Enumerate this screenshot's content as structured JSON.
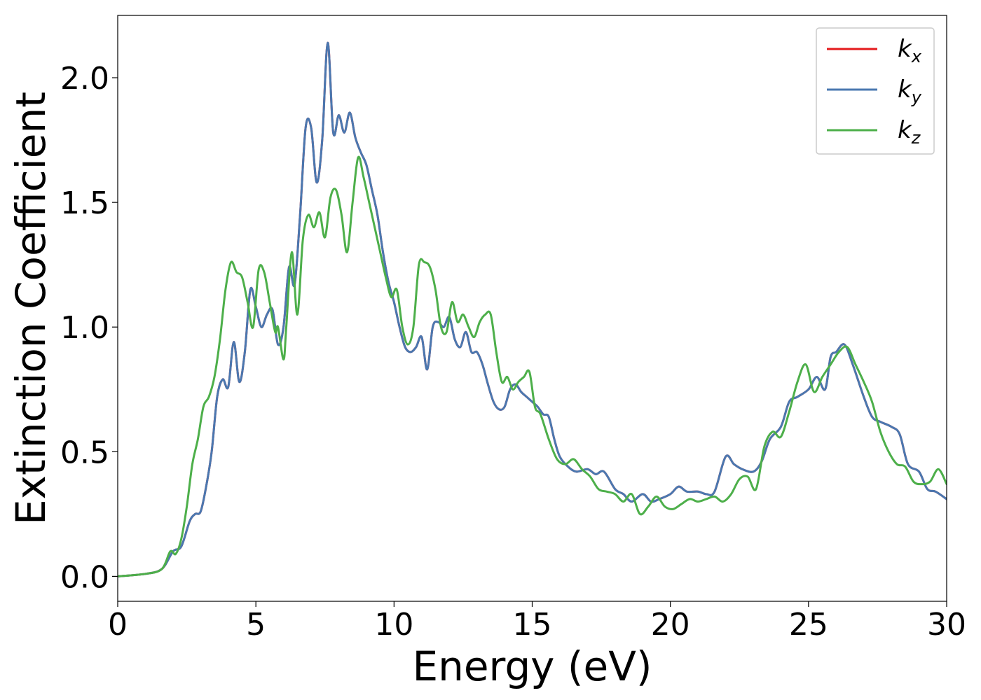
{
  "chart_data": {
    "type": "line",
    "title": "",
    "xlabel": "Energy (eV)",
    "ylabel": "Extinction Coefficient",
    "xlim": [
      0,
      30
    ],
    "ylim": [
      -0.1,
      2.25
    ],
    "xticks": [
      0,
      5,
      10,
      15,
      20,
      25,
      30
    ],
    "xtick_labels": [
      "0",
      "5",
      "10",
      "15",
      "20",
      "25",
      "30"
    ],
    "yticks": [
      0,
      0.5,
      1,
      1.5,
      2
    ],
    "ytick_labels": [
      "0.0",
      "0.5",
      "1.0",
      "1.5",
      "2.0"
    ],
    "grid": false,
    "legend_position": "top-right",
    "series": [
      {
        "name": "k",
        "subscript": "x",
        "color": "#e41a1c",
        "x": [
          0,
          1,
          1.6,
          2.0,
          2.3,
          2.6,
          2.8,
          3.0,
          3.2,
          3.4,
          3.6,
          3.8,
          4.0,
          4.2,
          4.4,
          4.6,
          4.8,
          5.0,
          5.2,
          5.4,
          5.6,
          5.8,
          6.0,
          6.2,
          6.4,
          6.6,
          6.8,
          7.0,
          7.2,
          7.4,
          7.6,
          7.8,
          8.0,
          8.2,
          8.4,
          8.6,
          8.8,
          9.0,
          9.2,
          9.4,
          9.6,
          9.8,
          10.0,
          10.2,
          10.4,
          10.6,
          10.8,
          11.0,
          11.2,
          11.4,
          11.6,
          11.8,
          12.0,
          12.2,
          12.4,
          12.6,
          12.8,
          13.0,
          13.2,
          13.4,
          13.6,
          13.8,
          14.0,
          14.2,
          14.4,
          14.6,
          14.8,
          15.0,
          15.2,
          15.4,
          15.6,
          15.8,
          16.0,
          16.3,
          16.6,
          17.0,
          17.3,
          17.6,
          18.0,
          18.3,
          18.6,
          19.0,
          19.3,
          19.6,
          20.0,
          20.3,
          20.6,
          21.0,
          21.3,
          21.6,
          22.0,
          22.3,
          22.6,
          23.0,
          23.3,
          23.6,
          24.0,
          24.3,
          24.6,
          25.0,
          25.3,
          25.6,
          25.8,
          26.0,
          26.3,
          26.6,
          27.0,
          27.3,
          27.6,
          28.0,
          28.3,
          28.6,
          29.0,
          29.3,
          29.6,
          30.0
        ],
        "values": [
          0.0,
          0.01,
          0.03,
          0.1,
          0.12,
          0.22,
          0.25,
          0.26,
          0.36,
          0.5,
          0.72,
          0.79,
          0.76,
          0.94,
          0.78,
          0.9,
          1.15,
          1.08,
          1.0,
          1.05,
          1.07,
          0.93,
          1.0,
          1.24,
          1.17,
          1.45,
          1.8,
          1.8,
          1.58,
          1.75,
          2.14,
          1.78,
          1.85,
          1.78,
          1.86,
          1.76,
          1.7,
          1.65,
          1.55,
          1.45,
          1.3,
          1.18,
          1.1,
          1.0,
          0.92,
          0.9,
          0.92,
          0.96,
          0.83,
          1.0,
          1.02,
          1.0,
          1.04,
          0.95,
          0.92,
          0.98,
          0.9,
          0.9,
          0.85,
          0.77,
          0.7,
          0.67,
          0.68,
          0.75,
          0.77,
          0.74,
          0.72,
          0.7,
          0.68,
          0.65,
          0.64,
          0.55,
          0.48,
          0.44,
          0.42,
          0.43,
          0.41,
          0.42,
          0.35,
          0.33,
          0.3,
          0.33,
          0.3,
          0.31,
          0.33,
          0.36,
          0.34,
          0.34,
          0.33,
          0.34,
          0.48,
          0.45,
          0.43,
          0.42,
          0.46,
          0.55,
          0.6,
          0.7,
          0.72,
          0.75,
          0.8,
          0.75,
          0.88,
          0.9,
          0.93,
          0.85,
          0.72,
          0.64,
          0.62,
          0.6,
          0.57,
          0.45,
          0.42,
          0.35,
          0.34,
          0.31
        ],
        "hidden_by_overlap": true
      },
      {
        "name": "k",
        "subscript": "y",
        "color": "#4a78b0",
        "x": [
          0,
          1,
          1.6,
          2.0,
          2.3,
          2.6,
          2.8,
          3.0,
          3.2,
          3.4,
          3.6,
          3.8,
          4.0,
          4.2,
          4.4,
          4.6,
          4.8,
          5.0,
          5.2,
          5.4,
          5.6,
          5.8,
          6.0,
          6.2,
          6.4,
          6.6,
          6.8,
          7.0,
          7.2,
          7.4,
          7.6,
          7.8,
          8.0,
          8.2,
          8.4,
          8.6,
          8.8,
          9.0,
          9.2,
          9.4,
          9.6,
          9.8,
          10.0,
          10.2,
          10.4,
          10.6,
          10.8,
          11.0,
          11.2,
          11.4,
          11.6,
          11.8,
          12.0,
          12.2,
          12.4,
          12.6,
          12.8,
          13.0,
          13.2,
          13.4,
          13.6,
          13.8,
          14.0,
          14.2,
          14.4,
          14.6,
          14.8,
          15.0,
          15.2,
          15.4,
          15.6,
          15.8,
          16.0,
          16.3,
          16.6,
          17.0,
          17.3,
          17.6,
          18.0,
          18.3,
          18.6,
          19.0,
          19.3,
          19.6,
          20.0,
          20.3,
          20.6,
          21.0,
          21.3,
          21.6,
          22.0,
          22.3,
          22.6,
          23.0,
          23.3,
          23.6,
          24.0,
          24.3,
          24.6,
          25.0,
          25.3,
          25.6,
          25.8,
          26.0,
          26.3,
          26.6,
          27.0,
          27.3,
          27.6,
          28.0,
          28.3,
          28.6,
          29.0,
          29.3,
          29.6,
          30.0
        ],
        "values": [
          0.0,
          0.01,
          0.03,
          0.1,
          0.12,
          0.22,
          0.25,
          0.26,
          0.36,
          0.5,
          0.72,
          0.79,
          0.76,
          0.94,
          0.78,
          0.9,
          1.15,
          1.08,
          1.0,
          1.05,
          1.07,
          0.93,
          1.0,
          1.24,
          1.17,
          1.45,
          1.8,
          1.8,
          1.58,
          1.75,
          2.14,
          1.78,
          1.85,
          1.78,
          1.86,
          1.76,
          1.7,
          1.65,
          1.55,
          1.45,
          1.3,
          1.18,
          1.1,
          1.0,
          0.92,
          0.9,
          0.92,
          0.96,
          0.83,
          1.0,
          1.02,
          1.0,
          1.04,
          0.95,
          0.92,
          0.98,
          0.9,
          0.9,
          0.85,
          0.77,
          0.7,
          0.67,
          0.68,
          0.75,
          0.77,
          0.74,
          0.72,
          0.7,
          0.68,
          0.65,
          0.64,
          0.55,
          0.48,
          0.44,
          0.42,
          0.43,
          0.41,
          0.42,
          0.35,
          0.33,
          0.3,
          0.33,
          0.3,
          0.31,
          0.33,
          0.36,
          0.34,
          0.34,
          0.33,
          0.34,
          0.48,
          0.45,
          0.43,
          0.42,
          0.46,
          0.55,
          0.6,
          0.7,
          0.72,
          0.75,
          0.8,
          0.75,
          0.88,
          0.9,
          0.93,
          0.85,
          0.72,
          0.64,
          0.62,
          0.6,
          0.57,
          0.45,
          0.42,
          0.35,
          0.34,
          0.31
        ]
      },
      {
        "name": "k",
        "subscript": "z",
        "color": "#4daf4a",
        "x": [
          0,
          1,
          1.6,
          1.9,
          2.1,
          2.3,
          2.5,
          2.7,
          2.9,
          3.1,
          3.3,
          3.5,
          3.7,
          3.9,
          4.1,
          4.3,
          4.5,
          4.7,
          4.9,
          5.1,
          5.3,
          5.5,
          5.7,
          5.8,
          6.0,
          6.1,
          6.3,
          6.5,
          6.7,
          6.9,
          7.1,
          7.3,
          7.5,
          7.7,
          7.9,
          8.1,
          8.3,
          8.5,
          8.7,
          8.9,
          9.1,
          9.3,
          9.5,
          9.7,
          9.9,
          10.1,
          10.3,
          10.5,
          10.7,
          10.9,
          11.1,
          11.3,
          11.5,
          11.7,
          11.9,
          12.1,
          12.3,
          12.5,
          12.7,
          12.9,
          13.1,
          13.3,
          13.5,
          13.7,
          13.9,
          14.1,
          14.3,
          14.5,
          14.7,
          14.9,
          15.1,
          15.3,
          15.6,
          15.9,
          16.2,
          16.5,
          16.8,
          17.1,
          17.4,
          17.7,
          18.0,
          18.3,
          18.6,
          18.9,
          19.2,
          19.5,
          19.8,
          20.1,
          20.4,
          20.7,
          21.0,
          21.3,
          21.6,
          21.9,
          22.2,
          22.5,
          22.8,
          23.1,
          23.4,
          23.7,
          24.0,
          24.3,
          24.6,
          24.9,
          25.2,
          25.5,
          25.8,
          26.1,
          26.4,
          26.7,
          27.0,
          27.3,
          27.6,
          27.9,
          28.2,
          28.5,
          28.8,
          29.1,
          29.4,
          29.7,
          30.0
        ],
        "values": [
          0.0,
          0.01,
          0.03,
          0.1,
          0.09,
          0.15,
          0.28,
          0.45,
          0.55,
          0.68,
          0.72,
          0.8,
          0.95,
          1.15,
          1.26,
          1.22,
          1.2,
          1.1,
          1.0,
          1.23,
          1.22,
          1.1,
          0.98,
          1.0,
          0.87,
          1.0,
          1.3,
          1.05,
          1.35,
          1.45,
          1.4,
          1.46,
          1.36,
          1.52,
          1.55,
          1.45,
          1.3,
          1.5,
          1.68,
          1.6,
          1.5,
          1.4,
          1.3,
          1.2,
          1.12,
          1.15,
          1.0,
          0.93,
          1.0,
          1.25,
          1.26,
          1.24,
          1.15,
          1.0,
          0.98,
          1.1,
          1.02,
          1.05,
          1.0,
          0.96,
          1.02,
          1.05,
          1.05,
          0.9,
          0.78,
          0.8,
          0.75,
          0.78,
          0.8,
          0.82,
          0.68,
          0.65,
          0.55,
          0.47,
          0.45,
          0.47,
          0.43,
          0.4,
          0.35,
          0.34,
          0.33,
          0.3,
          0.33,
          0.25,
          0.28,
          0.32,
          0.28,
          0.27,
          0.29,
          0.31,
          0.3,
          0.31,
          0.32,
          0.3,
          0.33,
          0.39,
          0.4,
          0.35,
          0.52,
          0.58,
          0.56,
          0.66,
          0.78,
          0.85,
          0.74,
          0.8,
          0.85,
          0.9,
          0.92,
          0.85,
          0.78,
          0.7,
          0.58,
          0.5,
          0.45,
          0.44,
          0.38,
          0.37,
          0.38,
          0.43,
          0.37
        ]
      }
    ]
  }
}
